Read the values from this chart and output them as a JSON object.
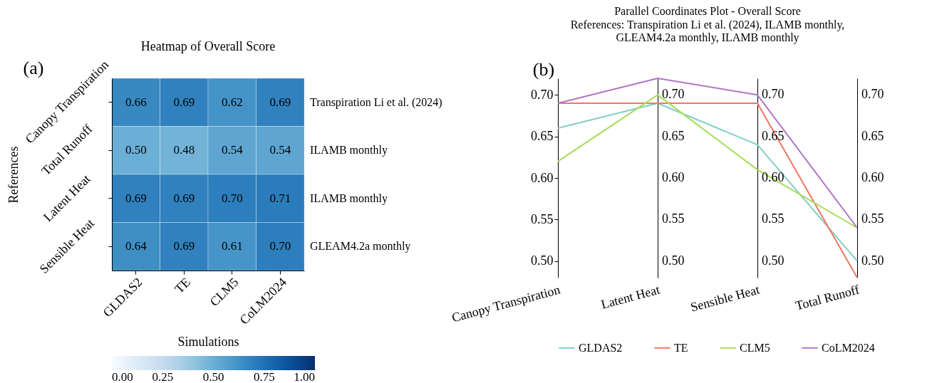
{
  "chart_data": [
    {
      "type": "heatmap",
      "title": "Heatmap of Overall  Score",
      "xlabel": "Simulations",
      "ylabel": "References",
      "annotations": [
        "(a)"
      ],
      "categories": [
        "GLDAS2",
        "TE",
        "CLM5",
        "CoLM2024"
      ],
      "y_categories": [
        "Canopy Transpiration",
        "Total Runoff",
        "Latent Heat",
        "Sensible Heat"
      ],
      "y2_categories": [
        "Transpiration Li et al. (2024)",
        "ILAMB  monthly",
        "ILAMB  monthly",
        "GLEAM4.2a  monthly"
      ],
      "cells": [
        [
          0.66,
          0.69,
          0.62,
          0.69
        ],
        [
          0.5,
          0.48,
          0.54,
          0.54
        ],
        [
          0.69,
          0.69,
          0.7,
          0.71
        ],
        [
          0.64,
          0.69,
          0.61,
          0.7
        ]
      ],
      "cell_labels": [
        [
          "0.66",
          "0.69",
          "0.62",
          "0.69"
        ],
        [
          "0.50",
          "0.48",
          "0.54",
          "0.54"
        ],
        [
          "0.69",
          "0.69",
          "0.70",
          "0.71"
        ],
        [
          "0.64",
          "0.69",
          "0.61",
          "0.70"
        ]
      ],
      "clim": [
        0,
        1
      ],
      "cticks": [
        {
          "value": 0,
          "label": "0.00"
        },
        {
          "value": 0.25,
          "label": "0.25"
        },
        {
          "value": 0.5,
          "label": "0.50"
        },
        {
          "value": 0.75,
          "label": "0.75"
        },
        {
          "value": 1,
          "label": "1.00"
        }
      ]
    },
    {
      "type": "line",
      "title": "Parallel Coordinates Plot - Overall Score",
      "subtitle": "References: Transpiration Li et al. (2024), ILAMB monthly, GLEAM4.2a monthly, ILAMB monthly",
      "annotations": [
        "(b)"
      ],
      "categories": [
        "Canopy Transpiration",
        "Latent Heat",
        "Sensible Heat",
        "Total Runoff"
      ],
      "series": [
        {
          "name": "GLDAS2",
          "color": "#80d0c2",
          "values": [
            0.66,
            0.69,
            0.64,
            0.5
          ]
        },
        {
          "name": "TE",
          "color": "#f47562",
          "values": [
            0.69,
            0.69,
            0.69,
            0.48
          ]
        },
        {
          "name": "CLM5",
          "color": "#a8dc58",
          "values": [
            0.62,
            0.7,
            0.61,
            0.54
          ]
        },
        {
          "name": "CoLM2024",
          "color": "#b275c6",
          "values": [
            0.69,
            0.72,
            0.7,
            0.54
          ]
        }
      ],
      "ylim": [
        0.48,
        0.72
      ],
      "yticks": [
        {
          "value": 0.5,
          "label": "0.50"
        },
        {
          "value": 0.55,
          "label": "0.55"
        },
        {
          "value": 0.6,
          "label": "0.60"
        },
        {
          "value": 0.65,
          "label": "0.65"
        },
        {
          "value": 0.7,
          "label": "0.70"
        }
      ],
      "grid": "x",
      "legend": "bottom",
      "marker": "none",
      "line_style": "solid"
    }
  ]
}
